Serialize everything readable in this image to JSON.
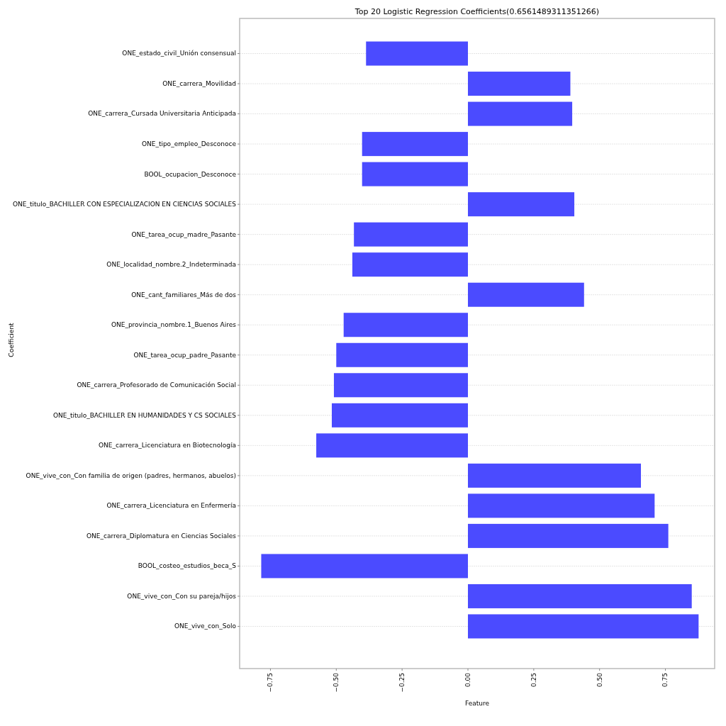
{
  "chart_data": {
    "type": "bar",
    "orientation": "horizontal",
    "title": "Top 20 Logistic Regression Coefficients(0.6561489311351266)",
    "xlabel": "Feature",
    "ylabel": "Coefficient",
    "categories": [
      "ONE_estado_civil_Unión consensual",
      "ONE_carrera_Movilidad",
      "ONE_carrera_Cursada Universitaria Anticipada",
      "ONE_tipo_empleo_Desconoce",
      "BOOL_ocupacion_Desconoce",
      "ONE_titulo_BACHILLER CON ESPECIALIZACION EN CIENCIAS SOCIALES",
      "ONE_tarea_ocup_madre_Pasante",
      "ONE_localidad_nombre.2_Indeterminada",
      "ONE_cant_familiares_Más de dos",
      "ONE_provincia_nombre.1_Buenos Aires",
      "ONE_tarea_ocup_padre_Pasante",
      "ONE_carrera_Profesorado de Comunicación Social",
      "ONE_titulo_BACHILLER EN HUMANIDADES Y CS SOCIALES",
      "ONE_carrera_Licenciatura en Biotecnología",
      "ONE_vive_con_Con familia de origen (padres, hermanos, abuelos)",
      "ONE_carrera_Licenciatura en Enfermería",
      "ONE_carrera_Diplomatura en Ciencias Sociales",
      "BOOL_costeo_estudios_beca_S",
      "ONE_vive_con_Con su pareja/hijos",
      "ONE_vive_con_Solo"
    ],
    "values": [
      -0.387,
      0.389,
      0.396,
      -0.402,
      -0.402,
      0.404,
      -0.433,
      -0.439,
      0.441,
      -0.472,
      -0.5,
      -0.509,
      -0.517,
      -0.576,
      0.657,
      0.709,
      0.761,
      -0.785,
      0.85,
      0.876
    ],
    "color": "#4b4bff",
    "xlim": [
      -0.867,
      0.937
    ],
    "xticks": [
      {
        "value": -0.75,
        "label": "−0.75"
      },
      {
        "value": -0.5,
        "label": "−0.50"
      },
      {
        "value": -0.25,
        "label": "−0.25"
      },
      {
        "value": 0,
        "label": "0.00"
      },
      {
        "value": 0.25,
        "label": "0.25"
      },
      {
        "value": 0.5,
        "label": "0.50"
      },
      {
        "value": 0.75,
        "label": "0.75"
      }
    ],
    "grid": "y"
  }
}
